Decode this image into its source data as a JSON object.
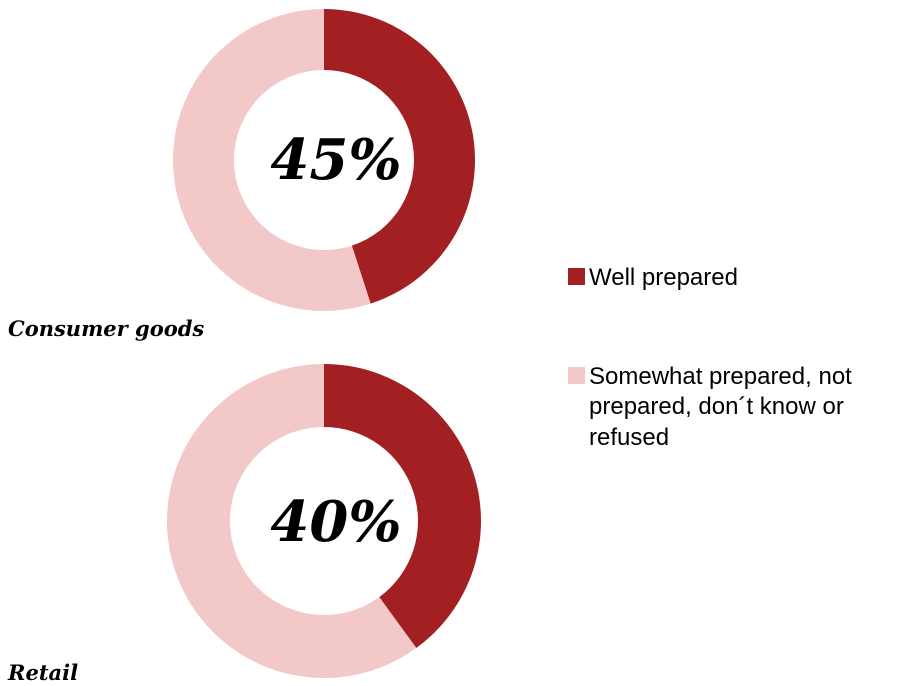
{
  "colors": {
    "well_prepared": "#A21F22",
    "other": "#F3C8C8"
  },
  "legend": [
    {
      "label": "Well prepared",
      "color_key": "well_prepared"
    },
    {
      "label_lines": [
        "Somewhat prepared, not",
        "prepared, don´t know or",
        "refused"
      ],
      "color_key": "other"
    }
  ],
  "chart_data": [
    {
      "type": "pie",
      "hole": true,
      "title": "Consumer goods",
      "center_label": "45%",
      "categories": [
        "Well prepared",
        "Somewhat prepared, not prepared, don´t know or refused"
      ],
      "values": [
        45,
        55
      ]
    },
    {
      "type": "pie",
      "hole": true,
      "title": "Retail",
      "center_label": "40%",
      "categories": [
        "Well prepared",
        "Somewhat prepared, not prepared, don´t know or refused"
      ],
      "values": [
        40,
        60
      ]
    }
  ]
}
